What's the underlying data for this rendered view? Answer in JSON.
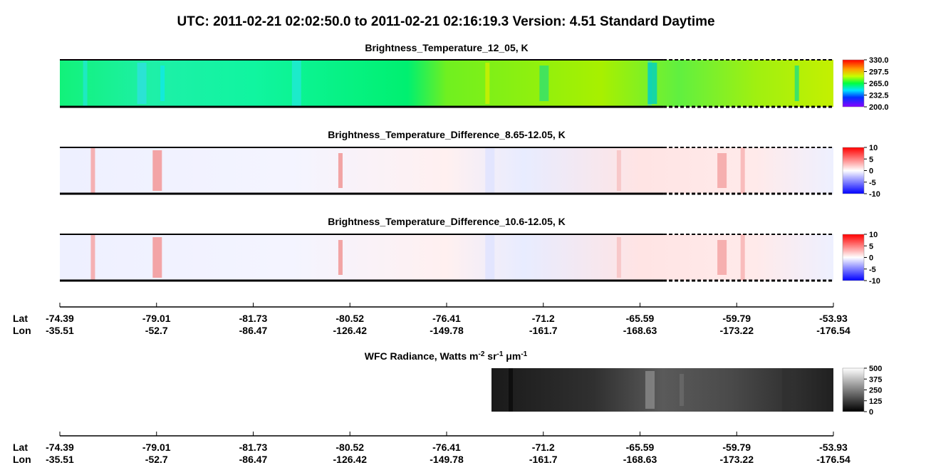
{
  "title": "UTC:  2011-02-21   02:02:50.0  to  2011-02-21   02:16:19.3    Version: 4.51  Standard Daytime",
  "chart_data": [
    {
      "type": "heatmap",
      "title": "Brightness_Temperature_12_05, K",
      "colormap": "rainbow",
      "clim": [
        200,
        330
      ],
      "cticks": [
        {
          "value": 200,
          "label": "200.0"
        },
        {
          "value": 232.5,
          "label": "232.5"
        },
        {
          "value": 265,
          "label": "265.0"
        },
        {
          "value": 297.5,
          "label": "297.5"
        },
        {
          "value": 330,
          "label": "330.0"
        }
      ]
    },
    {
      "type": "heatmap",
      "title": "Brightness_Temperature_Difference_8.65-12.05, K",
      "colormap": "bwr",
      "clim": [
        -10,
        10
      ],
      "cticks": [
        -10,
        -5,
        0,
        5,
        10
      ]
    },
    {
      "type": "heatmap",
      "title": "Brightness_Temperature_Difference_10.6-12.05, K",
      "colormap": "bwr",
      "clim": [
        -10,
        10
      ],
      "cticks": [
        -10,
        -5,
        0,
        5,
        10
      ]
    },
    {
      "type": "heatmap",
      "title_parts": [
        "WFC Radiance, Watts m",
        "-2",
        " sr",
        "-1",
        " μm",
        "-1"
      ],
      "colormap": "gray",
      "clim": [
        0,
        500
      ],
      "cticks": [
        0,
        125,
        250,
        375,
        500
      ]
    }
  ],
  "location_axis": {
    "lat_label": "Lat",
    "lon_label": "Lon",
    "lat": [
      -74.39,
      -79.01,
      -81.73,
      -80.52,
      -76.41,
      -71.2,
      -65.59,
      -59.79,
      -53.93
    ],
    "lon": [
      -35.51,
      -52.7,
      -86.47,
      -126.42,
      -149.78,
      -161.7,
      -168.63,
      -173.22,
      -176.54
    ]
  }
}
